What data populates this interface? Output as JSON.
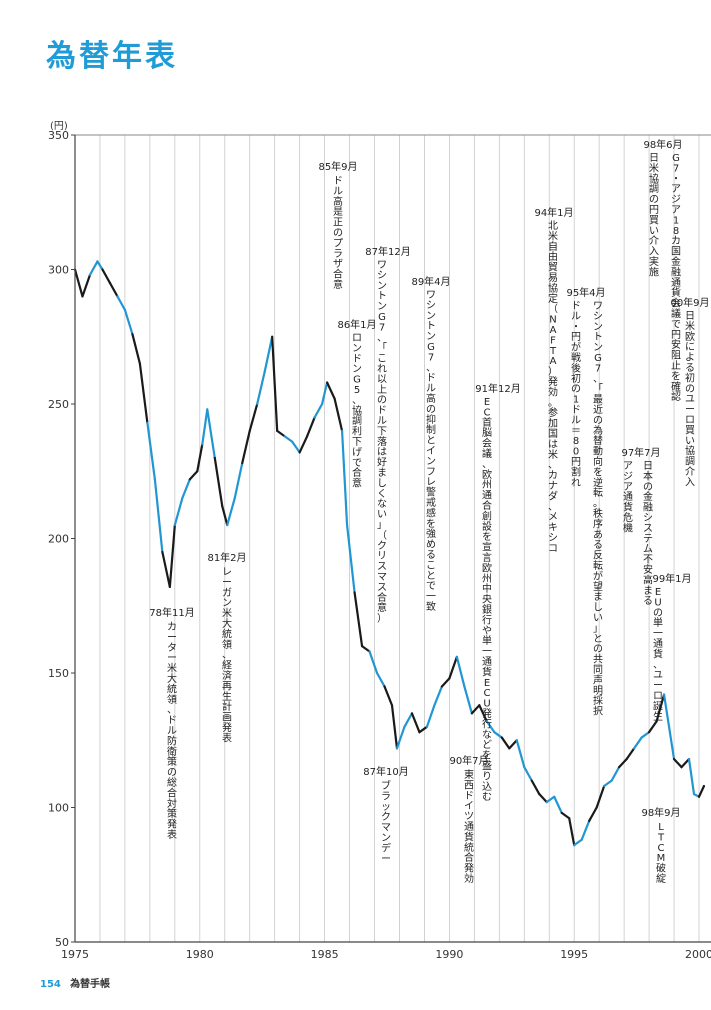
{
  "header": {
    "title": "為替年表"
  },
  "footer": {
    "page_number": "154",
    "book_title": "為替手帳"
  },
  "chart_data": {
    "type": "line",
    "title": "為替年表",
    "ylabel": "(円)",
    "ylim": [
      50,
      350
    ],
    "xlim": [
      1975,
      2000
    ],
    "y_ticks": [
      50,
      100,
      150,
      200,
      250,
      300,
      350
    ],
    "x_ticks": [
      1975,
      1980,
      1985,
      1990,
      1995,
      2000
    ],
    "grid": "vertical yearly",
    "colors": {
      "series_dark": "#1a1a1a",
      "series_light": "#2196d3",
      "grid": "#c8c8c8",
      "accent": "#1f9bd7"
    },
    "series": [
      {
        "values_x": [
          1975.0,
          1975.3,
          1975.6,
          1975.9,
          1976.1,
          1976.4,
          1976.7,
          1977.0,
          1977.3,
          1977.6,
          1977.9,
          1978.2,
          1978.5,
          1978.8,
          1979.0,
          1979.3,
          1979.6,
          1979.9,
          1980.1,
          1980.3,
          1980.6,
          1980.9,
          1981.1,
          1981.4,
          1981.7,
          1982.0,
          1982.3,
          1982.6,
          1982.9,
          1983.1,
          1983.4,
          1983.7,
          1984.0,
          1984.3,
          1984.6,
          1984.9,
          1985.1,
          1985.4,
          1985.7,
          1985.9,
          1986.2,
          1986.5,
          1986.8,
          1987.1,
          1987.4,
          1987.7,
          1987.9,
          1988.2,
          1988.5,
          1988.8,
          1989.1,
          1989.4,
          1989.7,
          1990.0,
          1990.3,
          1990.6,
          1990.9,
          1991.2,
          1991.5,
          1991.8,
          1992.1,
          1992.4,
          1992.7,
          1993.0,
          1993.3,
          1993.6,
          1993.9,
          1994.2,
          1994.5,
          1994.8,
          1995.0,
          1995.3,
          1995.6,
          1995.9,
          1996.2,
          1996.5,
          1996.8,
          1997.1,
          1997.4,
          1997.7,
          1998.0,
          1998.3,
          1998.6,
          1998.8,
          1999.0,
          1999.3,
          1999.6,
          1999.8,
          2000.0,
          2000.2
        ],
        "values_y": [
          300,
          290,
          298,
          303,
          300,
          295,
          290,
          285,
          276,
          265,
          243,
          222,
          195,
          182,
          205,
          215,
          222,
          225,
          235,
          248,
          230,
          212,
          205,
          215,
          228,
          240,
          250,
          262,
          275,
          240,
          238,
          236,
          232,
          238,
          245,
          250,
          258,
          252,
          240,
          205,
          180,
          160,
          158,
          150,
          145,
          138,
          122,
          130,
          135,
          128,
          130,
          138,
          145,
          148,
          156,
          145,
          135,
          138,
          132,
          128,
          126,
          122,
          125,
          115,
          110,
          105,
          102,
          104,
          98,
          96,
          86,
          88,
          95,
          100,
          108,
          110,
          115,
          118,
          122,
          126,
          128,
          132,
          142,
          130,
          118,
          115,
          118,
          105,
          104,
          108
        ]
      }
    ],
    "annotations": [
      {
        "date": "85年9月",
        "text": "ドル高是正のプラザ合意"
      },
      {
        "date": "86年1月",
        "text": "ロンドンG5、協調利下げで合意"
      },
      {
        "date": "87年12月",
        "text": "ワシントンG7、「これ以上のドル下落は好ましくない」（クリスマス合意）"
      },
      {
        "date": "89年4月",
        "text": "ワシントンG7、ドル高の抑制とインフレ警戒感を強めることで一致"
      },
      {
        "date": "91年12月",
        "text": "EC首脳会議、欧州通合創設を宣言欧州中央銀行や単一通貨ECU発行などを盛り込む"
      },
      {
        "date": "94年1月",
        "text": "北米自由貿易協定（NAFTA）発効。参加国は米、カナダ、メキシコ"
      },
      {
        "date": "95年4月",
        "text": "ドル・円が戦後初の1ドル＝80円割れ"
      },
      {
        "date": "",
        "text": "ワシントンG7、「最近の為替動向を逆転。秩序ある反転が望ましい」との共同声明採択"
      },
      {
        "date": "98年6月",
        "text": "日米協調の円買い介入実施"
      },
      {
        "date": "",
        "text": "G7・アジア18カ国金融通貨会議で円安阻止を確認"
      },
      {
        "date": "00年9月",
        "text": "日米欧による初のユーロ買い協調介入"
      },
      {
        "date": "97年7月",
        "text": "アジア通貨危機"
      },
      {
        "date": "",
        "text": "日本の金融システム不安高まる"
      },
      {
        "date": "99年1月",
        "text": "EUの単一通貨、ユーロ誕生"
      },
      {
        "date": "78年11月",
        "text": "カーター米大統領、ドル防衛策の総合対策発表"
      },
      {
        "date": "81年2月",
        "text": "レーガン米大統領、経済再生計画発表"
      },
      {
        "date": "87年10月",
        "text": "ブラックマンデー"
      },
      {
        "date": "90年7月",
        "text": "東西ドイツ通貨統合発効"
      },
      {
        "date": "98年9月",
        "text": "LTCM破綻"
      }
    ]
  }
}
